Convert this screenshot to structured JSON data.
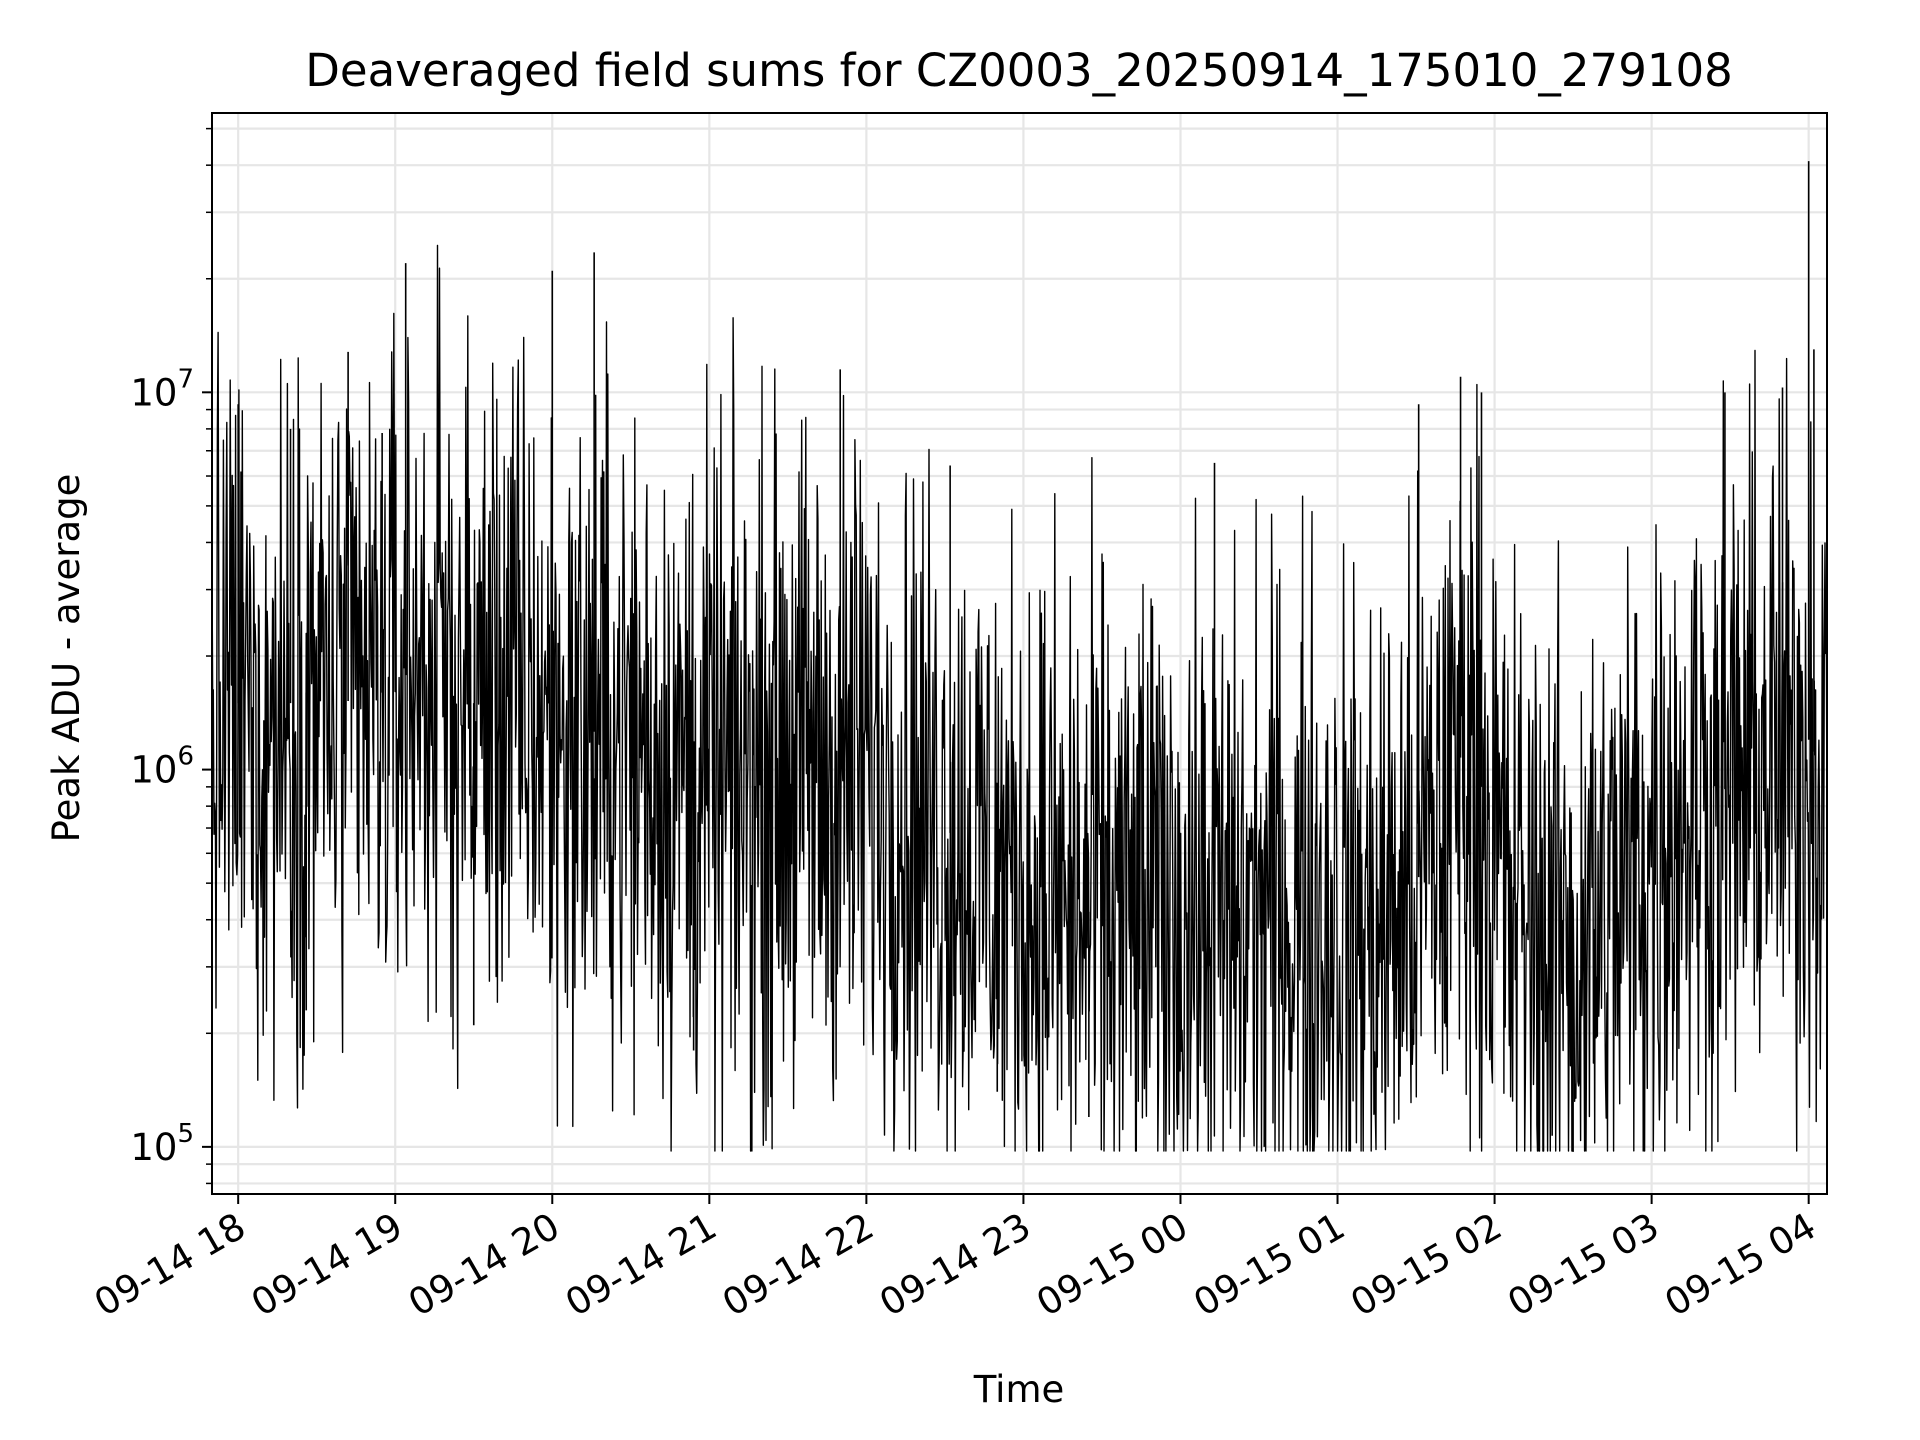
{
  "chart_data": {
    "type": "line",
    "title": "Deaveraged field sums for CZ0003_20250914_175010_279108",
    "xlabel": "Time",
    "ylabel": "Peak ADU - average",
    "yscale": "log",
    "ylim": [
      75000,
      55000000
    ],
    "xlim": [
      "2025-09-14 17:50",
      "2025-09-15 04:07"
    ],
    "grid": true,
    "line_color": "#000000",
    "x_ticks": [
      {
        "t": "2025-09-14 18:00",
        "label": "09-14 18"
      },
      {
        "t": "2025-09-14 19:00",
        "label": "09-14 19"
      },
      {
        "t": "2025-09-14 20:00",
        "label": "09-14 20"
      },
      {
        "t": "2025-09-14 21:00",
        "label": "09-14 21"
      },
      {
        "t": "2025-09-14 22:00",
        "label": "09-14 22"
      },
      {
        "t": "2025-09-14 23:00",
        "label": "09-14 23"
      },
      {
        "t": "2025-09-15 00:00",
        "label": "09-15 00"
      },
      {
        "t": "2025-09-15 01:00",
        "label": "09-15 01"
      },
      {
        "t": "2025-09-15 02:00",
        "label": "09-15 02"
      },
      {
        "t": "2025-09-15 03:00",
        "label": "09-15 03"
      },
      {
        "t": "2025-09-15 04:00",
        "label": "09-15 04"
      }
    ],
    "y_ticks": [
      {
        "value": 100000,
        "base": "10",
        "exp": "5"
      },
      {
        "value": 1000000,
        "base": "10",
        "exp": "6"
      },
      {
        "value": 10000000,
        "base": "10",
        "exp": "7"
      }
    ],
    "series": [
      {
        "x": [
          "2025-09-14 17:50",
          "2025-09-14 17:55",
          "2025-09-14 18:00",
          "2025-09-14 18:05",
          "2025-09-14 18:10",
          "2025-09-14 18:15",
          "2025-09-14 18:20",
          "2025-09-14 18:25",
          "2025-09-14 18:30",
          "2025-09-14 18:35",
          "2025-09-14 18:40",
          "2025-09-14 18:45",
          "2025-09-14 18:50",
          "2025-09-14 18:55",
          "2025-09-14 19:00",
          "2025-09-14 19:05",
          "2025-09-14 19:10",
          "2025-09-14 19:15",
          "2025-09-14 19:20",
          "2025-09-14 19:25",
          "2025-09-14 19:30",
          "2025-09-14 19:35",
          "2025-09-14 19:40",
          "2025-09-14 19:45",
          "2025-09-14 19:50",
          "2025-09-14 19:55",
          "2025-09-14 20:00",
          "2025-09-14 20:05",
          "2025-09-14 20:10",
          "2025-09-14 20:15",
          "2025-09-14 20:20",
          "2025-09-14 20:25",
          "2025-09-14 20:30",
          "2025-09-14 20:35",
          "2025-09-14 20:40",
          "2025-09-14 20:45",
          "2025-09-14 20:50",
          "2025-09-14 20:55",
          "2025-09-14 21:00",
          "2025-09-14 21:05",
          "2025-09-14 21:10",
          "2025-09-14 21:15",
          "2025-09-14 21:20",
          "2025-09-14 21:25",
          "2025-09-14 21:30",
          "2025-09-14 21:35",
          "2025-09-14 21:40",
          "2025-09-14 21:45",
          "2025-09-14 21:50",
          "2025-09-14 21:55",
          "2025-09-14 22:00",
          "2025-09-14 22:05",
          "2025-09-14 22:10",
          "2025-09-14 22:15",
          "2025-09-14 22:20",
          "2025-09-14 22:25",
          "2025-09-14 22:30",
          "2025-09-14 22:35",
          "2025-09-14 22:40",
          "2025-09-14 22:45",
          "2025-09-14 22:50",
          "2025-09-14 22:55",
          "2025-09-14 23:00",
          "2025-09-14 23:05",
          "2025-09-14 23:10",
          "2025-09-14 23:15",
          "2025-09-14 23:20",
          "2025-09-14 23:25",
          "2025-09-14 23:30",
          "2025-09-14 23:35",
          "2025-09-14 23:40",
          "2025-09-14 23:45",
          "2025-09-14 23:50",
          "2025-09-14 23:55",
          "2025-09-15 00:00",
          "2025-09-15 00:05",
          "2025-09-15 00:10",
          "2025-09-15 00:15",
          "2025-09-15 00:20",
          "2025-09-15 00:25",
          "2025-09-15 00:30",
          "2025-09-15 00:35",
          "2025-09-15 00:40",
          "2025-09-15 00:45",
          "2025-09-15 00:50",
          "2025-09-15 00:55",
          "2025-09-15 01:00",
          "2025-09-15 01:05",
          "2025-09-15 01:10",
          "2025-09-15 01:15",
          "2025-09-15 01:20",
          "2025-09-15 01:25",
          "2025-09-15 01:30",
          "2025-09-15 01:35",
          "2025-09-15 01:40",
          "2025-09-15 01:45",
          "2025-09-15 01:50",
          "2025-09-15 01:55",
          "2025-09-15 02:00",
          "2025-09-15 02:05",
          "2025-09-15 02:10",
          "2025-09-15 02:15",
          "2025-09-15 02:20",
          "2025-09-15 02:25",
          "2025-09-15 02:30",
          "2025-09-15 02:35",
          "2025-09-15 02:40",
          "2025-09-15 02:45",
          "2025-09-15 02:50",
          "2025-09-15 02:55",
          "2025-09-15 03:00",
          "2025-09-15 03:05",
          "2025-09-15 03:10",
          "2025-09-15 03:15",
          "2025-09-15 03:20",
          "2025-09-15 03:25",
          "2025-09-15 03:30",
          "2025-09-15 03:35",
          "2025-09-15 03:40",
          "2025-09-15 03:45",
          "2025-09-15 03:50",
          "2025-09-15 03:55",
          "2025-09-15 04:00",
          "2025-09-15 04:05"
        ],
        "y": [
          1200000,
          1500000,
          1500000,
          1400000,
          1300000,
          1400000,
          1500000,
          1600000,
          1600000,
          1500000,
          1500000,
          1550000,
          1500000,
          1600000,
          1700000,
          1800000,
          1900000,
          1800000,
          1700000,
          1600000,
          1500000,
          1600000,
          1700000,
          1600000,
          1500000,
          1400000,
          1300000,
          1250000,
          1200000,
          1250000,
          1300000,
          1250000,
          1200000,
          1150000,
          1100000,
          1050000,
          1000000,
          1000000,
          950000,
          900000,
          900000,
          950000,
          1000000,
          1050000,
          1100000,
          1050000,
          1000000,
          950000,
          1000000,
          1050000,
          1000000,
          950000,
          900000,
          850000,
          800000,
          750000,
          700000,
          650000,
          600000,
          600000,
          550000,
          500000,
          480000,
          460000,
          450000,
          430000,
          420000,
          420000,
          430000,
          420000,
          410000,
          400000,
          420000,
          430000,
          420000,
          410000,
          400000,
          380000,
          390000,
          400000,
          420000,
          430000,
          420000,
          410000,
          420000,
          430000,
          420000,
          400000,
          380000,
          390000,
          420000,
          450000,
          500000,
          600000,
          750000,
          1000000,
          1200000,
          900000,
          600000,
          450000,
          400000,
          380000,
          360000,
          340000,
          330000,
          340000,
          380000,
          420000,
          480000,
          560000,
          620000,
          700000,
          780000,
          820000,
          850000,
          870000,
          900000,
          950000,
          1000000,
          1100000,
          1050000,
          1000000,
          1200000,
          1000000
        ]
      }
    ],
    "spikes": [
      {
        "t": "2025-09-14 18:00",
        "value": 9300000
      },
      {
        "t": "2025-09-14 18:20",
        "value": 8000000
      },
      {
        "t": "2025-09-14 18:42",
        "value": 12800000
      },
      {
        "t": "2025-09-14 18:55",
        "value": 7800000
      },
      {
        "t": "2025-09-14 19:04",
        "value": 22000000
      },
      {
        "t": "2025-09-14 20:00",
        "value": 21000000
      },
      {
        "t": "2025-09-14 20:16",
        "value": 23500000
      },
      {
        "t": "2025-09-14 21:50",
        "value": 11500000
      },
      {
        "t": "2025-09-14 22:32",
        "value": 6400000
      },
      {
        "t": "2025-09-15 00:13",
        "value": 6500000
      },
      {
        "t": "2025-09-15 01:31",
        "value": 9300000
      },
      {
        "t": "2025-09-15 01:47",
        "value": 11000000
      },
      {
        "t": "2025-09-15 01:55",
        "value": 10000000
      },
      {
        "t": "2025-09-15 03:28",
        "value": 10000000
      },
      {
        "t": "2025-09-15 03:50",
        "value": 10300000
      },
      {
        "t": "2025-09-15 04:00",
        "value": 41000000
      },
      {
        "t": "2025-09-15 04:02",
        "value": 13000000
      }
    ],
    "dips": [
      {
        "t": "2025-09-14 18:26",
        "value": 230000
      },
      {
        "t": "2025-09-14 19:30",
        "value": 210000
      },
      {
        "t": "2025-09-14 20:54",
        "value": 180000
      },
      {
        "t": "2025-09-14 22:50",
        "value": 140000
      },
      {
        "t": "2025-09-14 23:25",
        "value": 120000
      },
      {
        "t": "2025-09-15 00:32",
        "value": 100000
      },
      {
        "t": "2025-09-15 02:22",
        "value": 107000
      },
      {
        "t": "2025-09-15 02:30",
        "value": 97000
      }
    ]
  }
}
